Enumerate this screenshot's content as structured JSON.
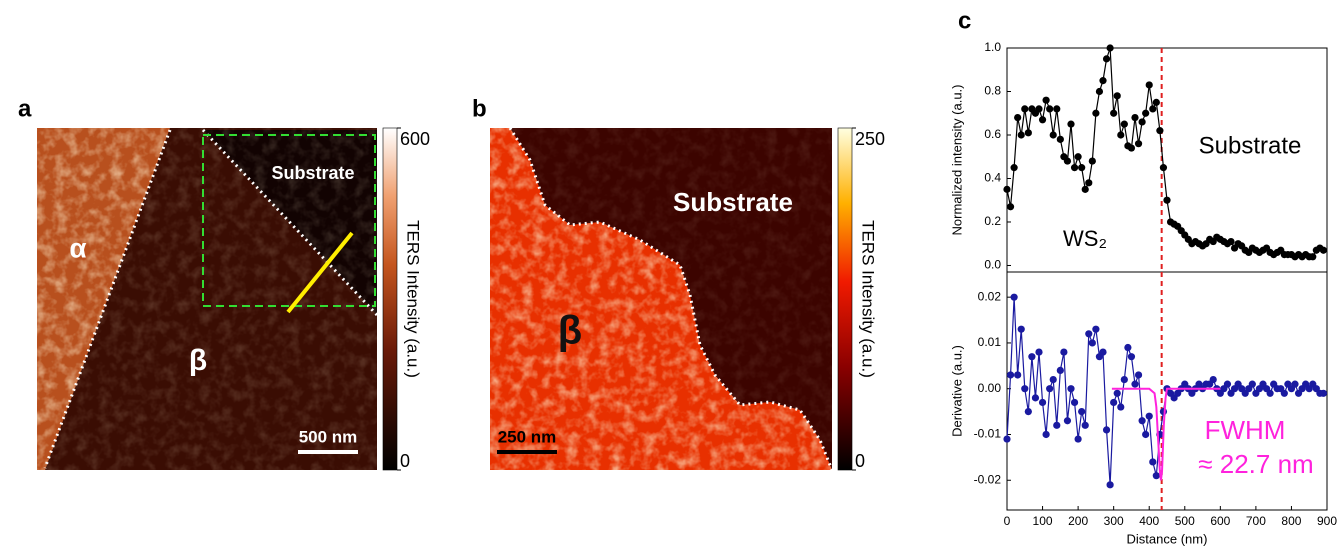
{
  "panel_labels": [
    "a",
    "b",
    "c"
  ],
  "maps": [
    {
      "labels": [
        "α",
        "β",
        "Substrate"
      ],
      "scale_bar": "500 nm",
      "colorbar_title": "TERS Intensity (a.u.)",
      "clim": [
        0,
        600
      ],
      "cticks": [
        0,
        600
      ]
    },
    {
      "labels": [
        "β",
        "Substrate"
      ],
      "scale_bar": "250 nm",
      "colorbar_title": "TERS Intensity (a.u.)",
      "clim": [
        0,
        250
      ],
      "cticks": [
        0,
        250
      ]
    }
  ],
  "chart_data": [
    {
      "type": "line",
      "ylabel": "Normalized intensity (a.u.)",
      "annotations": [
        "WS₂",
        "Substrate"
      ],
      "xlim": [
        0,
        900
      ],
      "ylim": [
        -0.03,
        1.0
      ],
      "yticks": [
        {
          "value": 0,
          "label": "0.0"
        },
        0.2,
        0.4,
        0.6,
        0.8,
        {
          "value": 1,
          "label": "1.0"
        }
      ],
      "vline_x": 435,
      "vline_color": "#e02020",
      "series": [
        {
          "color": "#000000",
          "markers": true,
          "x": [
            0,
            10,
            20,
            30,
            40,
            50,
            60,
            70,
            80,
            90,
            100,
            110,
            120,
            130,
            140,
            150,
            160,
            170,
            180,
            190,
            200,
            210,
            220,
            230,
            240,
            250,
            260,
            270,
            280,
            290,
            300,
            310,
            320,
            330,
            340,
            350,
            360,
            370,
            380,
            390,
            400,
            410,
            420,
            430,
            440,
            450,
            460,
            470,
            480,
            490,
            500,
            510,
            520,
            530,
            540,
            550,
            560,
            570,
            580,
            590,
            600,
            610,
            620,
            630,
            640,
            650,
            660,
            670,
            680,
            690,
            700,
            710,
            720,
            730,
            740,
            750,
            760,
            770,
            780,
            790,
            800,
            810,
            820,
            830,
            840,
            850,
            860,
            870,
            880,
            890
          ],
          "values": [
            0.35,
            0.27,
            0.45,
            0.68,
            0.6,
            0.72,
            0.61,
            0.72,
            0.7,
            0.72,
            0.67,
            0.76,
            0.72,
            0.6,
            0.72,
            0.58,
            0.5,
            0.48,
            0.65,
            0.45,
            0.5,
            0.45,
            0.35,
            0.38,
            0.48,
            0.7,
            0.8,
            0.85,
            0.95,
            1.0,
            0.7,
            0.78,
            0.6,
            0.65,
            0.55,
            0.54,
            0.68,
            0.56,
            0.66,
            0.7,
            0.83,
            0.72,
            0.75,
            0.62,
            0.45,
            0.3,
            0.2,
            0.19,
            0.18,
            0.16,
            0.14,
            0.12,
            0.1,
            0.11,
            0.1,
            0.09,
            0.1,
            0.12,
            0.11,
            0.13,
            0.12,
            0.11,
            0.1,
            0.11,
            0.08,
            0.1,
            0.09,
            0.07,
            0.06,
            0.08,
            0.07,
            0.06,
            0.07,
            0.08,
            0.06,
            0.05,
            0.06,
            0.07,
            0.05,
            0.05,
            0.05,
            0.04,
            0.05,
            0.04,
            0.05,
            0.04,
            0.04,
            0.07,
            0.08,
            0.07
          ]
        }
      ]
    },
    {
      "type": "line",
      "xlabel": "Distance (nm)",
      "ylabel": "Derivative (a.u.)",
      "annotations": [
        "FWHM",
        "≈ 22.7 nm"
      ],
      "xlim": [
        0,
        900
      ],
      "ylim": [
        -0.0265,
        0.0255
      ],
      "xticks": [
        0,
        100,
        200,
        300,
        400,
        500,
        600,
        700,
        800,
        900
      ],
      "yticks": [
        -0.02,
        -0.01,
        {
          "value": 0,
          "label": "0.00"
        },
        0.01,
        0.02
      ],
      "vline_x": 435,
      "vline_color": "#e02020",
      "series": [
        {
          "color": "#1a1aa0",
          "markers": true,
          "x": [
            0,
            10,
            20,
            30,
            40,
            50,
            60,
            70,
            80,
            90,
            100,
            110,
            120,
            130,
            140,
            150,
            160,
            170,
            180,
            190,
            200,
            210,
            220,
            230,
            240,
            250,
            260,
            270,
            280,
            290,
            300,
            310,
            320,
            330,
            340,
            350,
            360,
            370,
            380,
            390,
            400,
            410,
            420,
            430,
            440,
            450,
            460,
            470,
            480,
            490,
            500,
            510,
            520,
            530,
            540,
            550,
            560,
            570,
            580,
            590,
            600,
            610,
            620,
            630,
            640,
            650,
            660,
            670,
            680,
            690,
            700,
            710,
            720,
            730,
            740,
            750,
            760,
            770,
            780,
            790,
            800,
            810,
            820,
            830,
            840,
            850,
            860,
            870,
            880,
            890
          ],
          "values": [
            -0.011,
            0.003,
            0.02,
            0.003,
            0.013,
            0.0,
            -0.005,
            0.007,
            -0.002,
            0.008,
            -0.003,
            -0.01,
            0.0,
            0.002,
            -0.008,
            0.004,
            0.008,
            -0.007,
            0.0,
            -0.003,
            -0.011,
            -0.005,
            -0.008,
            0.012,
            0.01,
            0.013,
            0.007,
            0.008,
            -0.009,
            -0.021,
            -0.003,
            -0.001,
            -0.004,
            0.002,
            0.009,
            0.007,
            0.001,
            0.003,
            -0.007,
            -0.01,
            -0.006,
            -0.016,
            -0.019,
            -0.01,
            -0.005,
            0.0,
            -0.001,
            -0.002,
            -0.001,
            0.0,
            0.001,
            0.0,
            -0.001,
            0.0,
            0.001,
            0.0,
            0.001,
            0.001,
            0.002,
            0.0,
            -0.001,
            0.0,
            0.001,
            -0.001,
            0.0,
            0.001,
            0.0,
            -0.001,
            0.0,
            0.001,
            -0.001,
            0.0,
            0.001,
            0.0,
            -0.001,
            0.001,
            0.0,
            0.0,
            -0.001,
            0.001,
            0.0,
            0.001,
            -0.001,
            0.0,
            0.001,
            0.0,
            0.001,
            0.0,
            -0.001,
            -0.001
          ]
        },
        {
          "color": "#ff22dd",
          "markers": false,
          "x": [
            295,
            400,
            415,
            420,
            425,
            430,
            433,
            436,
            441,
            446,
            450,
            600
          ],
          "values": [
            0,
            0,
            -0.001,
            -0.004,
            -0.011,
            -0.018,
            -0.02,
            -0.018,
            -0.008,
            -0.002,
            0,
            0
          ]
        }
      ]
    }
  ]
}
